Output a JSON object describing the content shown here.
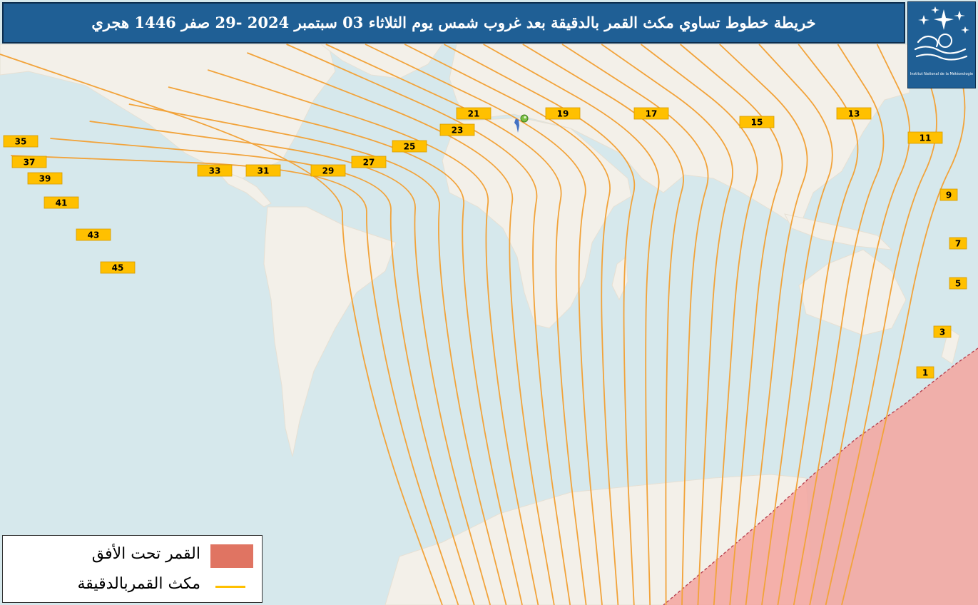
{
  "header": {
    "title": "خريطة خطوط تساوي مكث القمر بالدقيقة بعد غروب شمس يوم الثلاثاء   03  سبتمبر 2024 -29 صفر 1446 هجري"
  },
  "logo": {
    "icon": "inm-logo-icon",
    "caption": "Institut National de la Météorologie"
  },
  "legend": {
    "below_horizon_label": "القمر تحت الأفق",
    "below_horizon_color": "#e07462",
    "moonset_lag_label": "مكث القمربالدقيقة",
    "moonset_lag_color": "#ffc000"
  },
  "map": {
    "ocean_color": "#d6e8ec",
    "land_color": "#f3f0e9",
    "region_shade_color": "#f4a6a0",
    "observer_marker_icon": "location-pin-icon",
    "contour_labels": [
      "1",
      "3",
      "5",
      "7",
      "9",
      "11",
      "13",
      "15",
      "17",
      "19",
      "21",
      "23",
      "25",
      "27",
      "29",
      "31",
      "33",
      "35",
      "37",
      "39",
      "41",
      "43",
      "45"
    ]
  }
}
